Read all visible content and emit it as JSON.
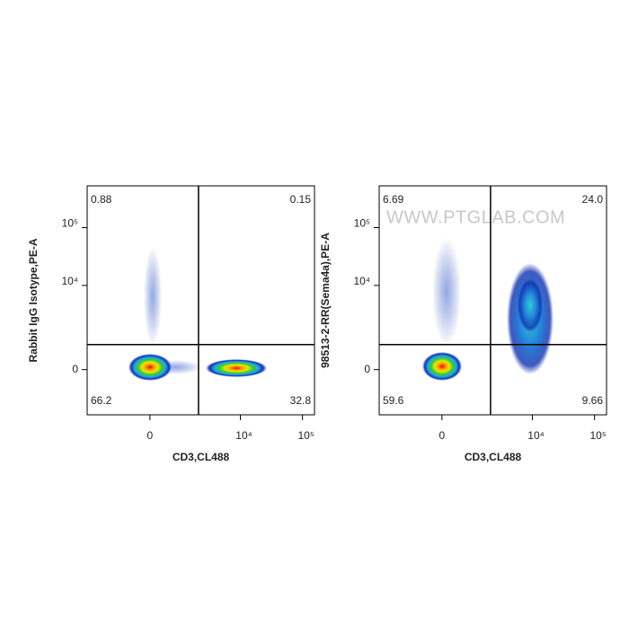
{
  "chart_data": [
    {
      "type": "scatter",
      "xlabel": "CD3,CL488",
      "ylabel": "Rabbit IgG Isotype,PE-A",
      "xlim": [
        -3550,
        156000
      ],
      "ylim": [
        -2060,
        528000
      ],
      "xticks": [
        0,
        {
          "value": 10000,
          "label": "10⁴"
        },
        {
          "value": 100000,
          "label": "10⁵"
        }
      ],
      "yticks": [
        0,
        {
          "value": 10000,
          "label": "10⁴"
        },
        {
          "value": 100000,
          "label": "10⁵"
        }
      ],
      "xgate": 2060,
      "ygate": 823,
      "quadrants": [
        0.88,
        0.15,
        66.2,
        32.8
      ],
      "value_labels": [
        "0.88",
        "0.15",
        "66.2",
        "32.8"
      ]
    },
    {
      "type": "scatter",
      "xlabel": "CD3,CL488",
      "ylabel": "98513-2-RR(Sema4a),PE-A",
      "watermark": "WWW.PTGLAB.COM",
      "xlim": [
        -3550,
        156000
      ],
      "ylim": [
        -2060,
        528000
      ],
      "xticks": [
        0,
        {
          "value": 10000,
          "label": "10⁴"
        },
        {
          "value": 100000,
          "label": "10⁵"
        }
      ],
      "yticks": [
        0,
        {
          "value": 10000,
          "label": "10⁴"
        },
        {
          "value": 100000,
          "label": "10⁵"
        }
      ],
      "xgate": 2060,
      "ygate": 823,
      "quadrants": [
        6.69,
        24.0,
        59.6,
        9.66
      ],
      "value_labels": [
        "6.69",
        "24.0",
        "59.6",
        "9.66"
      ]
    }
  ]
}
